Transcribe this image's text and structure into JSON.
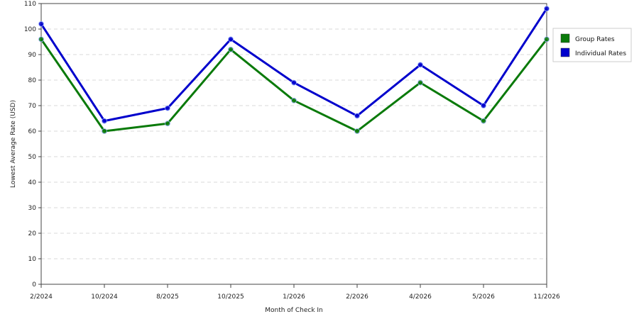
{
  "chart_data": {
    "type": "line",
    "categories": [
      "2/2024",
      "10/2024",
      "8/2025",
      "10/2025",
      "1/2026",
      "2/2026",
      "4/2026",
      "5/2026",
      "11/2026"
    ],
    "series": [
      {
        "name": "Group Rates",
        "color": "#0a7a0a",
        "values": [
          96,
          60,
          63,
          92,
          72,
          60,
          79,
          64,
          96
        ]
      },
      {
        "name": "Individual Rates",
        "color": "#0000cc",
        "values": [
          102,
          64,
          69,
          96,
          79,
          66,
          86,
          70,
          108
        ]
      }
    ],
    "xlabel": "Month of Check In",
    "ylabel": "Lowest Average Rate (USD)",
    "ylim": [
      0,
      110
    ],
    "yticks": [
      0,
      10,
      20,
      30,
      40,
      50,
      60,
      70,
      80,
      90,
      100,
      110
    ],
    "grid": true,
    "legend_position": "right"
  }
}
